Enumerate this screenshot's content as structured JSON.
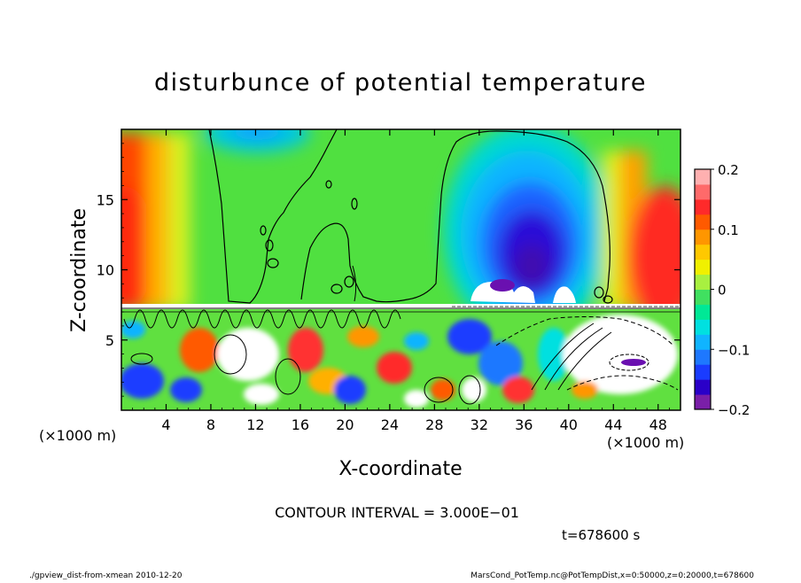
{
  "chart_data": {
    "type": "heatmap",
    "title": "disturbunce of potential temperature",
    "xlabel": "X-coordinate",
    "ylabel": "Z-coordinate",
    "x_unit": "(×1000 m)",
    "y_unit": "(×1000 m)",
    "xlim": [
      0,
      50
    ],
    "ylim": [
      0,
      20
    ],
    "x_ticks": [
      4,
      8,
      12,
      16,
      20,
      24,
      28,
      32,
      36,
      40,
      44,
      48
    ],
    "y_ticks": [
      5,
      10,
      15
    ],
    "colorbar": {
      "range": [
        -0.2,
        0.2
      ],
      "ticks": [
        {
          "value": 0.2,
          "label": "0.2"
        },
        {
          "value": 0.1,
          "label": "0.1"
        },
        {
          "value": 0.0,
          "label": "0"
        },
        {
          "value": -0.1,
          "label": "−0.1"
        },
        {
          "value": -0.2,
          "label": "−0.2"
        }
      ],
      "colors": [
        "#7a1fa8",
        "#2a00c8",
        "#1a3cff",
        "#1e78ff",
        "#10b4ff",
        "#00e0e0",
        "#00e896",
        "#40e060",
        "#a8f040",
        "#f0f000",
        "#ffc800",
        "#ff9600",
        "#ff5a00",
        "#ff2a2a",
        "#ff6a6a",
        "#ffb0b0"
      ]
    },
    "contour_interval_label": "CONTOUR INTERVAL = 3.000E−01"
  },
  "time_label": "t=678600 s",
  "footer_left": "./gpview_dist-from-xmean  2010-12-20",
  "footer_right": "MarsCond_PotTemp.nc@PotTempDist,x=0:50000,z=0:20000,t=678600"
}
